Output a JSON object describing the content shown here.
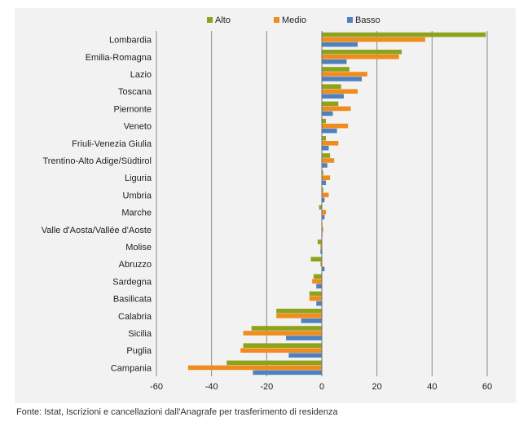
{
  "chart_data": {
    "type": "bar",
    "orientation": "horizontal",
    "categories": [
      "Lombardia",
      "Emilia-Romagna",
      "Lazio",
      "Toscana",
      "Piemonte",
      "Veneto",
      "Friuli-Venezia Giulia",
      "Trentino-Alto Adige/Südtirol",
      "Liguria",
      "Umbria",
      "Marche",
      "Valle d'Aosta/Vallée d'Aoste",
      "Molise",
      "Abruzzo",
      "Sardegna",
      "Basilicata",
      "Calabria",
      "Sicilia",
      "Puglia",
      "Campania"
    ],
    "series": [
      {
        "name": "Alto",
        "color": "#8ea31b",
        "values": [
          59.5,
          29,
          10,
          7,
          6,
          1.5,
          1.5,
          3,
          0.5,
          0.5,
          -1,
          0.2,
          -1.5,
          -4,
          -3,
          -4.5,
          -16.5,
          -25.5,
          -28.5,
          -34.5
        ]
      },
      {
        "name": "Medio",
        "color": "#f08c1e",
        "values": [
          37.5,
          28,
          16.5,
          13,
          10.5,
          9.5,
          6,
          4.5,
          3,
          2.5,
          1.5,
          0.5,
          -0.5,
          -0.5,
          -3.5,
          -4.5,
          -16.5,
          -28.5,
          -29.5,
          -48.5
        ]
      },
      {
        "name": "Basso",
        "color": "#4f81bd",
        "values": [
          13,
          9,
          14.5,
          8,
          4,
          5.5,
          2.5,
          2,
          1.5,
          1,
          1,
          0.2,
          -0.5,
          1,
          -2,
          -2,
          -7.5,
          -13,
          -12,
          -25
        ]
      }
    ],
    "xticks": [
      -60,
      -40,
      -20,
      0,
      20,
      40,
      60
    ],
    "xlim": [
      -60,
      60
    ],
    "grid": true,
    "legend_position": "top"
  },
  "source_note": "Fonte: Istat, Iscrizioni e cancellazioni dall'Anagrafe per trasferimento di residenza"
}
